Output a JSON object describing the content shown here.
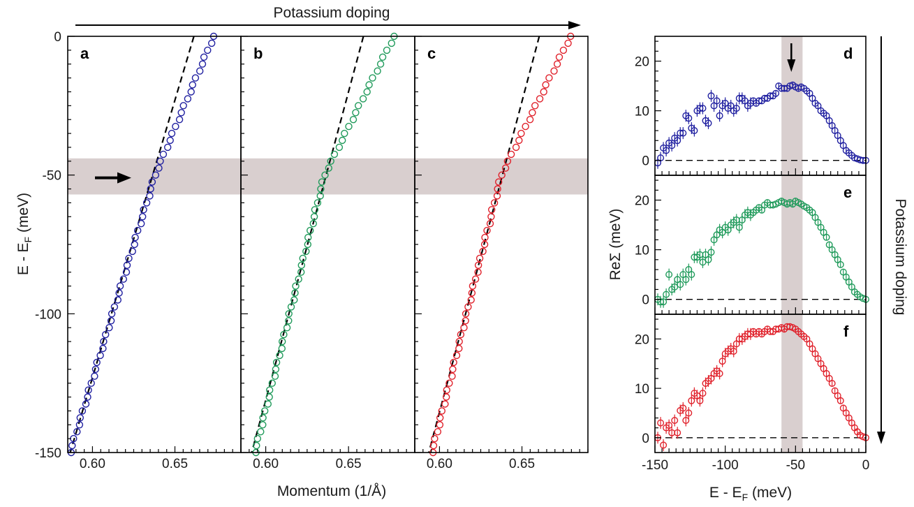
{
  "header": {
    "doping_label": "Potassium doping"
  },
  "side": {
    "doping_label": "Potassium doping"
  },
  "colors": {
    "a": "#1f1fa0",
    "b": "#1f9a5a",
    "c": "#e0202a",
    "band": "#d9cfcf",
    "fit": "#000000"
  },
  "chart_data": [
    {
      "type": "scatter",
      "panels": [
        "a",
        "b",
        "c"
      ],
      "xlabel": "Momentum (1/Å)",
      "ylabel": "E - E",
      "ylabel_subscript": "F",
      "ylabel_unit": " (meV)",
      "xlim": [
        0.585,
        0.69
      ],
      "ylim": [
        -150,
        0
      ],
      "xticks": [
        0.6,
        0.65
      ],
      "xtick_labels": [
        "0.60",
        "0.65"
      ],
      "yticks": [
        0,
        -50,
        -100,
        -150
      ],
      "ytick_labels": [
        "0",
        "-50",
        "-100",
        "-150"
      ],
      "shaded_band_y": [
        -57,
        -44
      ],
      "annotation": "arrow in panel a pointing to the kink near -50 meV",
      "series": [
        {
          "panel": "a",
          "k0": 0.6735,
          "k_kink": 0.638,
          "k_end": 0.5865,
          "bare_top": 0.6615,
          "bare_bottom": 0.5865,
          "color_key": "a"
        },
        {
          "panel": "b",
          "k0": 0.6775,
          "k_kink": 0.6355,
          "k_end": 0.5935,
          "bare_top": 0.659,
          "bare_bottom": 0.5915,
          "color_key": "b"
        },
        {
          "panel": "c",
          "k0": 0.6795,
          "k_kink": 0.6375,
          "k_end": 0.5955,
          "bare_top": 0.6605,
          "bare_bottom": 0.5935,
          "color_key": "c"
        }
      ]
    },
    {
      "type": "scatter",
      "panels": [
        "d",
        "e",
        "f"
      ],
      "xlabel": "E - E",
      "xlabel_subscript": "F",
      "xlabel_unit": " (meV)",
      "ylabel": "ReΣ (meV)",
      "xlim": [
        -150,
        0
      ],
      "xticks": [
        -150,
        -100,
        -50,
        0
      ],
      "xtick_labels": [
        "-150",
        "-100",
        "-50",
        "0"
      ],
      "yticks": [
        0,
        10,
        20
      ],
      "ytick_labels": [
        "0",
        "10",
        "20"
      ],
      "ylim": [
        -3,
        25
      ],
      "shaded_band_x": [
        -60,
        -45
      ],
      "annotation": "arrow in panel d pointing to peak near -53 meV",
      "series": [
        {
          "panel": "d",
          "color_key": "a",
          "x": [
            -148,
            -146,
            -144,
            -142,
            -140,
            -138,
            -136,
            -134,
            -132,
            -130,
            -128,
            -126,
            -124,
            -122,
            -120,
            -118,
            -116,
            -114,
            -112,
            -110,
            -108,
            -106,
            -104,
            -102,
            -100,
            -98,
            -96,
            -94,
            -92,
            -90,
            -88,
            -86,
            -84,
            -82,
            -80,
            -78,
            -76,
            -74,
            -72,
            -70,
            -68,
            -66,
            -64,
            -62,
            -60,
            -58,
            -56,
            -54,
            -52,
            -50,
            -48,
            -46,
            -44,
            -42,
            -40,
            -38,
            -36,
            -34,
            -32,
            -30,
            -28,
            -26,
            -24,
            -22,
            -20,
            -18,
            -16,
            -14,
            -12,
            -10,
            -8,
            -6,
            -4,
            -2,
            0
          ],
          "y": [
            -0.5,
            0.5,
            2.5,
            2,
            3.5,
            3,
            4.5,
            4,
            5.5,
            5.5,
            9,
            8.5,
            6.5,
            6,
            10,
            10.5,
            10.5,
            8,
            7.5,
            13,
            11,
            12,
            9,
            11,
            11.5,
            10.5,
            11,
            10,
            10.5,
            12.5,
            12.5,
            12,
            11,
            11.5,
            12,
            11.5,
            12,
            12,
            12.5,
            12.5,
            13,
            13,
            13.5,
            15,
            14.5,
            14.5,
            14.5,
            15,
            15.2,
            14.8,
            14.5,
            14.8,
            14.5,
            14,
            13.5,
            12.5,
            11.5,
            11,
            10,
            9.5,
            9,
            8,
            7,
            6,
            5,
            4,
            3,
            2,
            1.5,
            1,
            0.5,
            0.3,
            0.1,
            0,
            0
          ]
        },
        {
          "panel": "e",
          "color_key": "b",
          "x": [
            -148,
            -146,
            -144,
            -142,
            -140,
            -138,
            -136,
            -134,
            -132,
            -130,
            -128,
            -126,
            -124,
            -122,
            -120,
            -118,
            -116,
            -114,
            -112,
            -110,
            -108,
            -106,
            -104,
            -102,
            -100,
            -98,
            -96,
            -94,
            -92,
            -90,
            -88,
            -86,
            -84,
            -82,
            -80,
            -78,
            -76,
            -74,
            -72,
            -70,
            -68,
            -66,
            -64,
            -62,
            -60,
            -58,
            -56,
            -54,
            -52,
            -50,
            -48,
            -46,
            -44,
            -42,
            -40,
            -38,
            -36,
            -34,
            -32,
            -30,
            -28,
            -26,
            -24,
            -22,
            -20,
            -18,
            -16,
            -14,
            -12,
            -10,
            -8,
            -6,
            -4,
            -2,
            0
          ],
          "y": [
            0,
            -0.5,
            -0.5,
            1,
            5,
            2,
            2.5,
            4,
            3,
            5,
            4,
            6,
            5,
            8.5,
            8.5,
            9,
            7.5,
            9,
            8,
            9.5,
            12,
            13,
            14,
            13.5,
            14.5,
            14,
            15,
            15.5,
            16,
            14.5,
            16,
            17,
            17.5,
            17,
            17.5,
            18,
            18.5,
            18,
            19,
            19.5,
            19,
            19,
            19.2,
            19.5,
            19.8,
            19.5,
            19.2,
            19.5,
            19.2,
            19.8,
            19.5,
            19.2,
            18.8,
            18.5,
            18,
            17.5,
            16.5,
            15.5,
            14.5,
            13.5,
            12.5,
            11,
            10,
            9,
            8,
            7,
            5.5,
            4.5,
            3.5,
            2.5,
            1.5,
            1,
            0.5,
            0.2,
            0
          ]
        },
        {
          "panel": "f",
          "color_key": "c",
          "x": [
            -148,
            -146,
            -144,
            -142,
            -140,
            -138,
            -136,
            -134,
            -132,
            -130,
            -128,
            -126,
            -124,
            -122,
            -120,
            -118,
            -116,
            -114,
            -112,
            -110,
            -108,
            -106,
            -104,
            -102,
            -100,
            -98,
            -96,
            -94,
            -92,
            -90,
            -88,
            -86,
            -84,
            -82,
            -80,
            -78,
            -76,
            -74,
            -72,
            -70,
            -68,
            -66,
            -64,
            -62,
            -60,
            -58,
            -56,
            -54,
            -52,
            -50,
            -48,
            -46,
            -44,
            -42,
            -40,
            -38,
            -36,
            -34,
            -32,
            -30,
            -28,
            -26,
            -24,
            -22,
            -20,
            -18,
            -16,
            -14,
            -12,
            -10,
            -8,
            -6,
            -4,
            -2,
            0
          ],
          "y": [
            0,
            3,
            -1.5,
            2,
            2.5,
            1,
            3.5,
            1,
            5.5,
            6,
            3.5,
            5,
            7.5,
            9,
            8.5,
            7.5,
            9,
            11,
            11.5,
            12,
            13,
            13.5,
            13,
            15.5,
            17,
            17.5,
            18,
            17.5,
            19,
            20,
            20,
            20.5,
            21,
            21,
            21.5,
            21,
            21.5,
            21,
            21.5,
            22,
            21.5,
            21.5,
            22,
            22,
            22.3,
            22,
            22.5,
            22.5,
            22.3,
            22,
            21.5,
            21,
            20.5,
            20,
            19,
            18,
            17,
            16,
            15,
            14,
            13,
            12,
            11,
            9.5,
            8.5,
            7.5,
            6,
            5,
            4,
            3,
            2,
            1.2,
            0.5,
            0.2,
            0
          ]
        }
      ]
    }
  ],
  "labels": {
    "a": "a",
    "b": "b",
    "c": "c",
    "d": "d",
    "e": "e",
    "f": "f"
  }
}
